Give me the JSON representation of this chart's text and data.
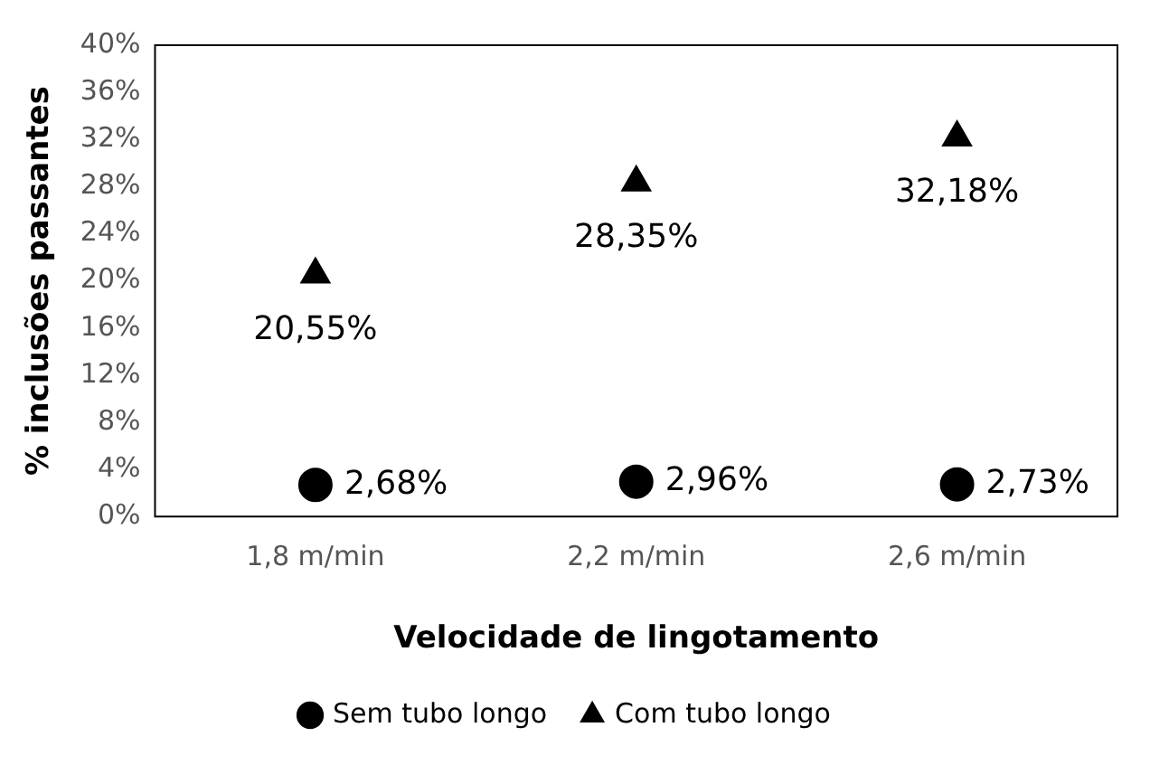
{
  "chart_data": {
    "type": "scatter",
    "xlabel": "Velocidade de lingotamento",
    "ylabel": "% inclusões passantes",
    "categories": [
      "1,8 m/min",
      "2,2 m/min",
      "2,6 m/min"
    ],
    "ylim": [
      0,
      40
    ],
    "yticks": [
      {
        "value": 0,
        "label": "0%"
      },
      {
        "value": 4,
        "label": "4%"
      },
      {
        "value": 8,
        "label": "8%"
      },
      {
        "value": 12,
        "label": "12%"
      },
      {
        "value": 16,
        "label": "16%"
      },
      {
        "value": 20,
        "label": "20%"
      },
      {
        "value": 24,
        "label": "24%"
      },
      {
        "value": 28,
        "label": "28%"
      },
      {
        "value": 32,
        "label": "32%"
      },
      {
        "value": 36,
        "label": "36%"
      },
      {
        "value": 40,
        "label": "40%"
      }
    ],
    "grid": false,
    "legend": "bottom",
    "series": [
      {
        "name": "Sem tubo longo",
        "color": "#000000",
        "marker": "circle",
        "values": [
          2.68,
          2.96,
          2.73
        ],
        "value_labels": [
          "2,68%",
          "2,96%",
          "2,73%"
        ]
      },
      {
        "name": "Com tubo longo",
        "color": "#000000",
        "marker": "triangle",
        "values": [
          20.55,
          28.35,
          32.18
        ],
        "value_labels": [
          "20,55%",
          "28,35%",
          "32,18%"
        ]
      }
    ]
  }
}
